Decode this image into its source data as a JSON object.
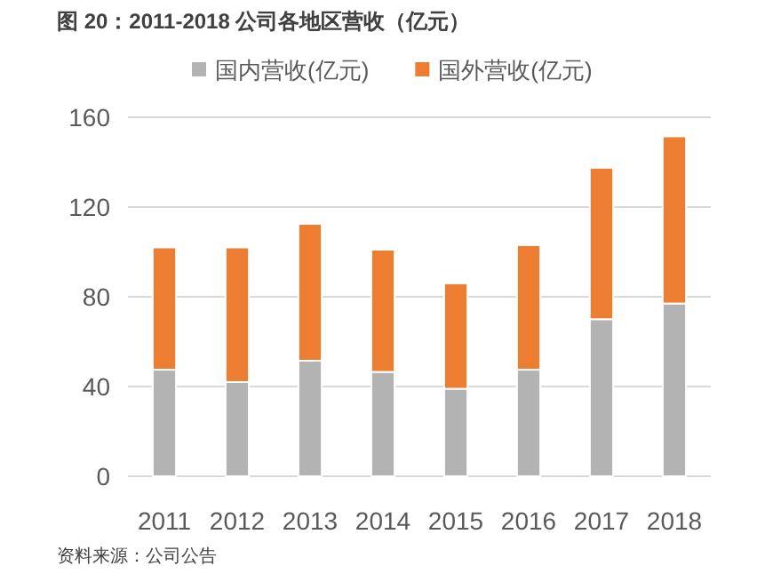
{
  "chart_data": {
    "type": "bar",
    "stacked": true,
    "title": "图 20：2011-2018 公司各地区营收（亿元）",
    "categories": [
      "2011",
      "2012",
      "2013",
      "2014",
      "2015",
      "2016",
      "2017",
      "2018"
    ],
    "series": [
      {
        "name": "国内营收(亿元)",
        "color": "#b3b3b3",
        "values": [
          47.5,
          42,
          51.5,
          46.5,
          39,
          47.5,
          70,
          77
        ]
      },
      {
        "name": "国外营收(亿元)",
        "color": "#ed7d31",
        "values": [
          54.5,
          60,
          61,
          54.5,
          47,
          55.5,
          67.5,
          74.5
        ]
      }
    ],
    "ylim": [
      0,
      160
    ],
    "yticks": [
      0,
      40,
      80,
      120,
      160
    ],
    "grid": "y",
    "legend": "top",
    "annotations": [
      "资料来源：公司公告"
    ]
  }
}
